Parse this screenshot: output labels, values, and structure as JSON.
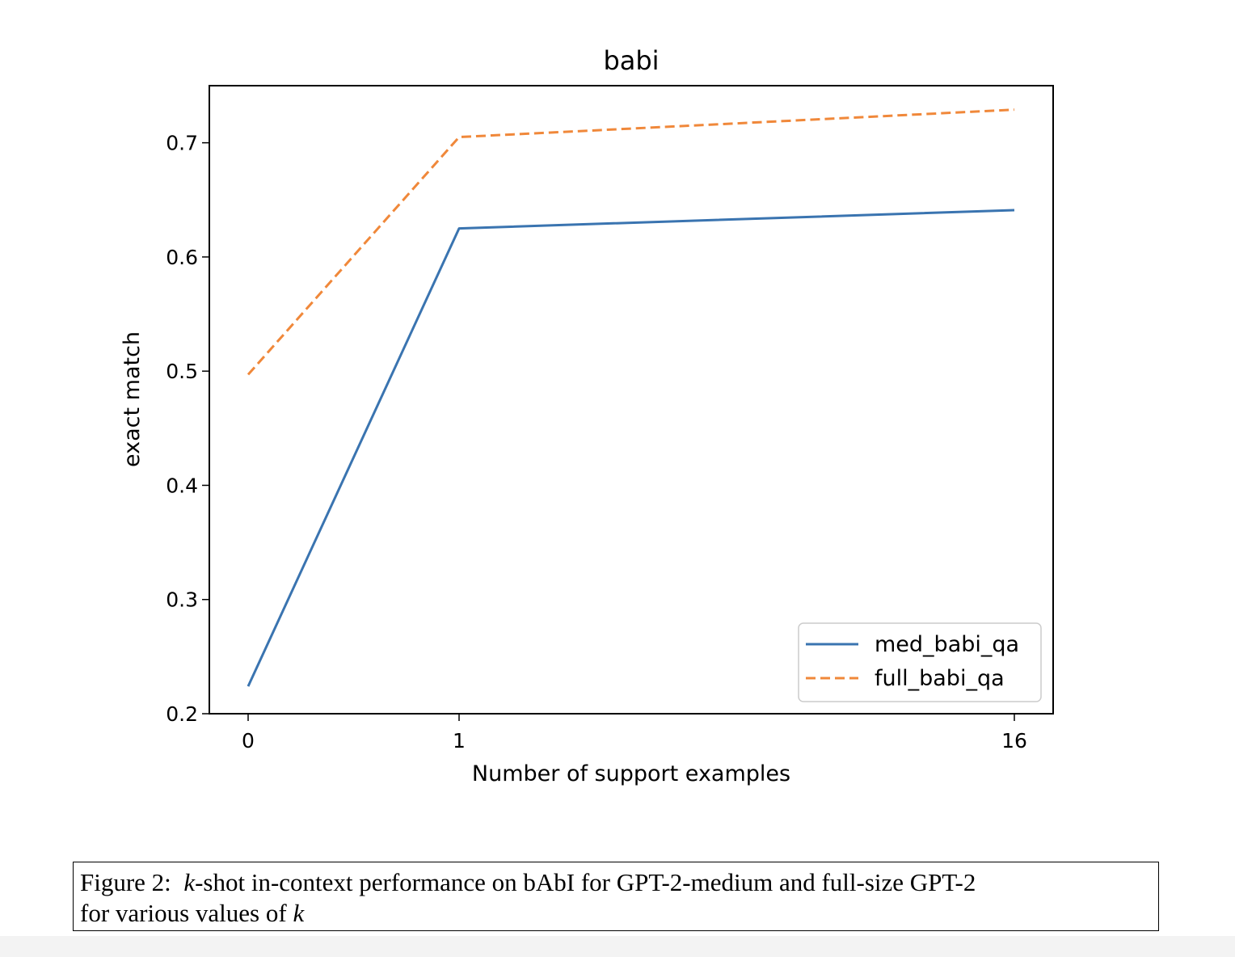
{
  "chart_data": {
    "type": "line",
    "title": "babi",
    "xlabel": "Number of support examples",
    "ylabel": "exact match",
    "x_categories": [
      "0",
      "1",
      "16"
    ],
    "x": [
      0,
      1,
      16
    ],
    "ylim": [
      0.2,
      0.75
    ],
    "yticks": [
      0.2,
      0.3,
      0.4,
      0.5,
      0.6,
      0.7
    ],
    "ytick_labels": [
      "0.2",
      "0.3",
      "0.4",
      "0.5",
      "0.6",
      "0.7"
    ],
    "grid": false,
    "legend_position": "lower-right",
    "series": [
      {
        "name": "med_babi_qa",
        "values": [
          0.224,
          0.625,
          0.641
        ],
        "color": "#3a74b0",
        "style": "solid"
      },
      {
        "name": "full_babi_qa",
        "values": [
          0.497,
          0.705,
          0.729
        ],
        "color": "#f0883a",
        "style": "dashed"
      }
    ]
  },
  "caption": {
    "label": "Figure 2:",
    "k1": "k",
    "text1": "-shot in-context performance on bAbI for GPT-2-medium and full-size GPT-2",
    "text2": "for various values of ",
    "k2": "k"
  }
}
